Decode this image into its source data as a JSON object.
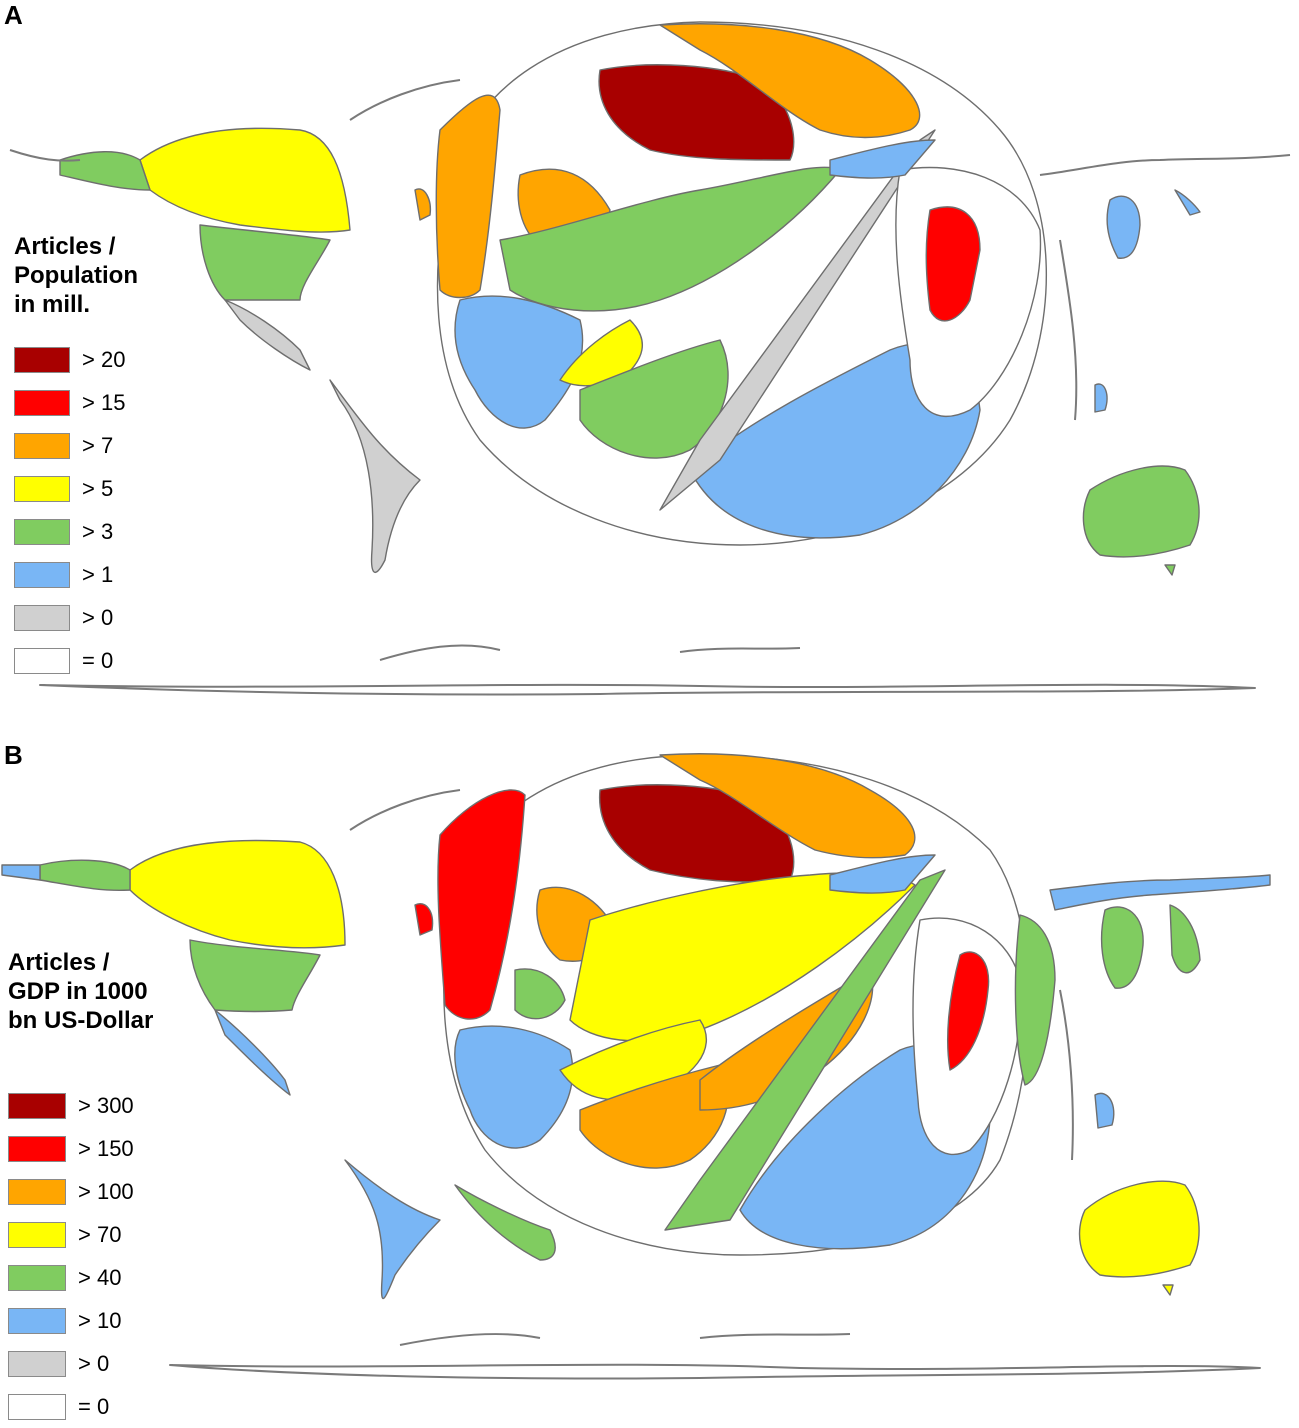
{
  "panels": [
    {
      "letter": "A",
      "legend_title": "Articles /\nPopulation\nin mill.",
      "legend": [
        {
          "label": "> 20",
          "color": "#a80000"
        },
        {
          "label": "> 15",
          "color": "#ff0000"
        },
        {
          "label": "> 7",
          "color": "#ffa500"
        },
        {
          "label": "> 5",
          "color": "#ffff00"
        },
        {
          "label": "> 3",
          "color": "#80cc60"
        },
        {
          "label": "> 1",
          "color": "#79b6f5"
        },
        {
          "label": "> 0",
          "color": "#d0d0d0"
        },
        {
          "label": "= 0",
          "color": "#ffffff"
        }
      ]
    },
    {
      "letter": "B",
      "legend_title": "Articles /\nGDP in 1000\nbn US-Dollar",
      "legend": [
        {
          "label": "> 300",
          "color": "#a80000"
        },
        {
          "label": "> 150",
          "color": "#ff0000"
        },
        {
          "label": "> 100",
          "color": "#ffa500"
        },
        {
          "label": "> 70",
          "color": "#ffff00"
        },
        {
          "label": "> 40",
          "color": "#80cc60"
        },
        {
          "label": "> 10",
          "color": "#79b6f5"
        },
        {
          "label": "> 0",
          "color": "#d0d0d0"
        },
        {
          "label": "= 0",
          "color": "#ffffff"
        }
      ]
    }
  ]
}
